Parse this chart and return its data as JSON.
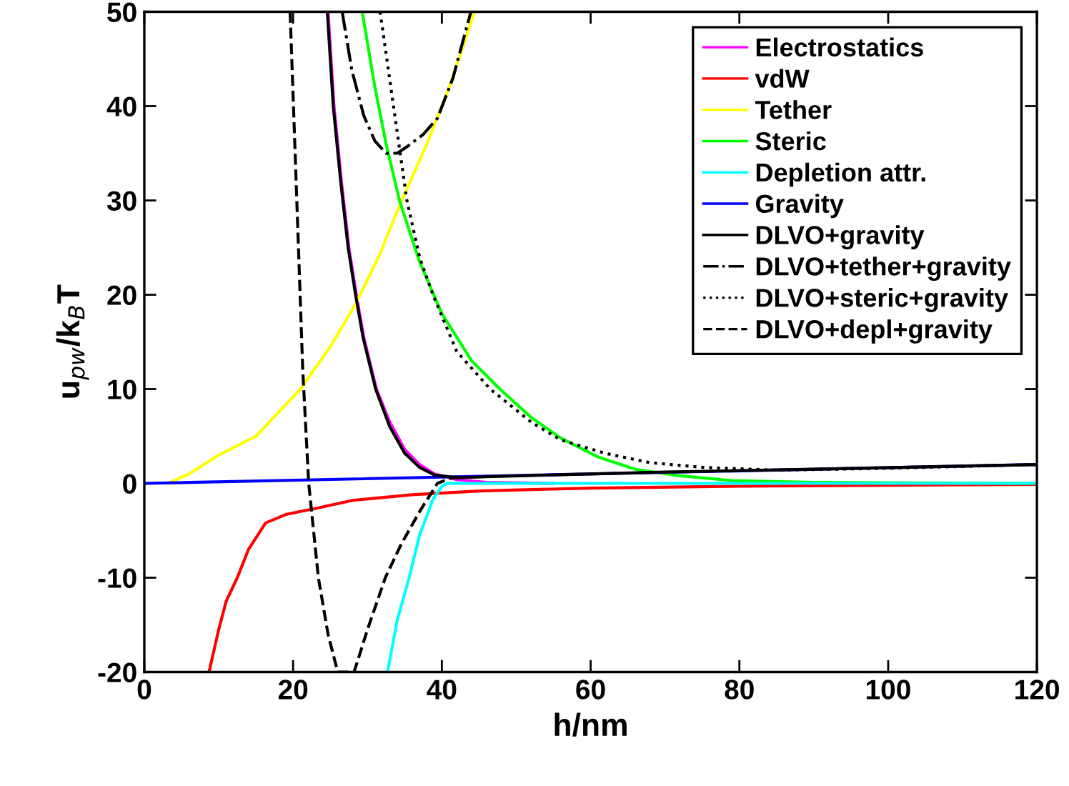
{
  "chart_data": {
    "type": "line",
    "xlabel": "h/nm",
    "ylabel": "u$_{pw}$/k$_{B}$T",
    "xlim": [
      0,
      120
    ],
    "ylim": [
      -20,
      50
    ],
    "xticks": [
      0,
      20,
      40,
      60,
      80,
      100,
      120
    ],
    "yticks": [
      -20,
      -10,
      0,
      10,
      20,
      30,
      40,
      50
    ],
    "grid": false,
    "legend": "top right",
    "marker": "none",
    "series": [
      {
        "name": "Electrostatics",
        "color": "#ff00ff",
        "line_style": "solid",
        "x": [
          24.7,
          25.5,
          26.5,
          27.5,
          28.5,
          29.5,
          31.2,
          33,
          35,
          37,
          39,
          42,
          46,
          55
        ],
        "values": [
          50,
          40,
          32,
          25,
          20,
          15.5,
          10,
          6.5,
          3.6,
          2.0,
          1.0,
          0.4,
          0.1,
          0
        ]
      },
      {
        "name": "vdW",
        "color": "#ff0000",
        "line_style": "solid",
        "x": [
          8.7,
          10,
          11,
          12.5,
          14,
          16.3,
          19,
          23.4,
          28,
          36,
          45,
          60,
          80,
          100,
          120
        ],
        "values": [
          -20,
          -15.5,
          -12.5,
          -10,
          -7,
          -4.2,
          -3.3,
          -2.6,
          -1.8,
          -1.2,
          -0.8,
          -0.5,
          -0.3,
          -0.2,
          -0.1
        ]
      },
      {
        "name": "Tether",
        "color": "#ffff00",
        "line_style": "solid",
        "x": [
          3.2,
          6,
          10,
          15,
          21,
          25,
          28.4,
          31.5,
          34.6,
          38,
          41,
          44.4
        ],
        "values": [
          0,
          1,
          3,
          5,
          10,
          14.5,
          19,
          24,
          30,
          36,
          42,
          50
        ]
      },
      {
        "name": "Steric",
        "color": "#00ff00",
        "line_style": "solid",
        "x": [
          29.3,
          31,
          32.5,
          34.3,
          37,
          40,
          44,
          47.8,
          52,
          56,
          61,
          66,
          72,
          79,
          90,
          120
        ],
        "values": [
          50,
          42,
          36,
          30,
          23.5,
          18,
          13,
          10,
          7,
          4.8,
          2.8,
          1.5,
          0.8,
          0.3,
          0.1,
          0
        ]
      },
      {
        "name": "Depletion attr.",
        "color": "#00ffff",
        "line_style": "solid",
        "x": [
          32.7,
          34,
          35.6,
          37,
          38.8,
          40,
          40.7,
          50,
          120
        ],
        "values": [
          -20,
          -14.5,
          -10,
          -5.5,
          -1.7,
          -0.3,
          0,
          0,
          0
        ]
      },
      {
        "name": "Gravity",
        "color": "#0000ff",
        "line_style": "solid",
        "x": [
          0,
          120
        ],
        "values": [
          0,
          2
        ]
      },
      {
        "name": "DLVO+gravity",
        "color": "#000000",
        "line_style": "solid",
        "x": [
          24.6,
          25.4,
          26.4,
          27.4,
          28.4,
          29.4,
          31.1,
          33,
          35,
          37,
          39,
          42,
          46,
          55,
          70,
          90,
          120
        ],
        "values": [
          50,
          40,
          32,
          25,
          20,
          15.5,
          10,
          6,
          3.2,
          1.7,
          0.9,
          0.6,
          0.7,
          0.9,
          1.2,
          1.5,
          2
        ]
      },
      {
        "name": "DLVO+tether+gravity",
        "color": "#000000",
        "line_style": "dashdot",
        "x": [
          26.6,
          27.9,
          29.5,
          31,
          32.5,
          34,
          35.5,
          37.5,
          39.4,
          41.5,
          43.9
        ],
        "values": [
          50,
          43.8,
          39,
          36.3,
          35,
          35,
          35.8,
          37,
          38.7,
          43,
          50
        ]
      },
      {
        "name": "DLVO+steric+gravity",
        "color": "#000000",
        "line_style": "dotted",
        "x": [
          31.7,
          33.5,
          35.3,
          37,
          38.8,
          42,
          46.5,
          52,
          56,
          61.9,
          68,
          75,
          85,
          100,
          120
        ],
        "values": [
          50,
          40,
          30,
          24,
          20,
          14,
          10,
          6.5,
          4.6,
          3.2,
          2.2,
          1.7,
          1.4,
          1.6,
          2
        ]
      },
      {
        "name": "DLVO+depl+gravity",
        "color": "#000000",
        "line_style": "dashed",
        "x": [
          19.6,
          20.5,
          21.3,
          22.1,
          23.4,
          24.7,
          26,
          28.2,
          30,
          32.4,
          34.5,
          37,
          39.4,
          41,
          42
        ],
        "values": [
          50,
          30,
          12,
          0,
          -10,
          -16,
          -20,
          -20,
          -15.5,
          -10,
          -6.5,
          -3,
          0,
          0.5,
          0.7
        ]
      }
    ]
  }
}
